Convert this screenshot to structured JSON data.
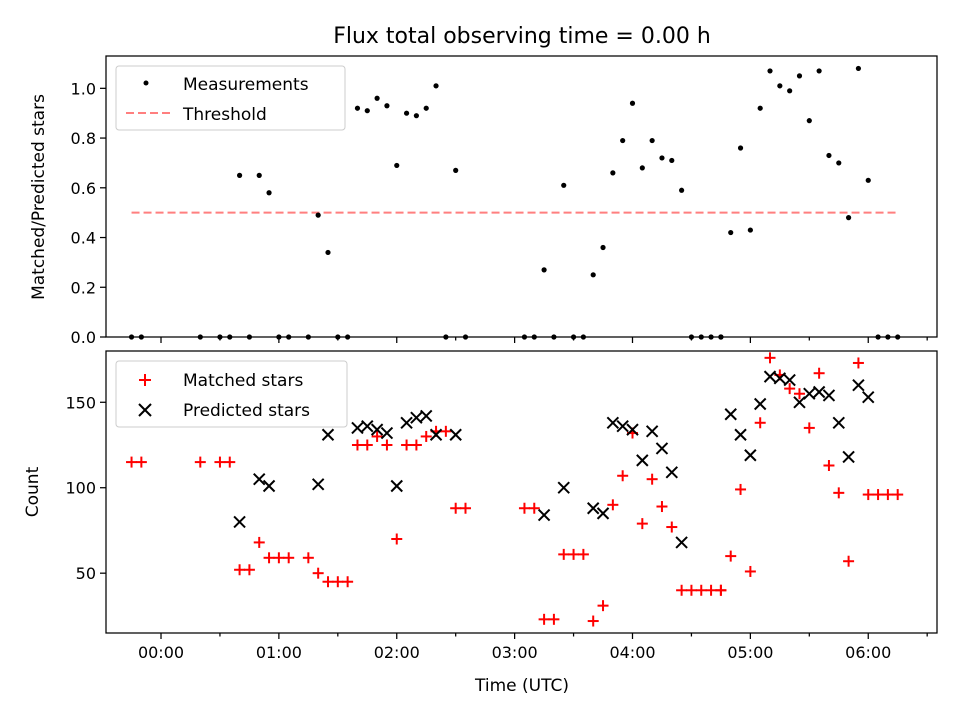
{
  "colors": {
    "measurement": "#000000",
    "threshold": "#ff7f7f",
    "matched": "#ff0000",
    "predicted": "#000000"
  },
  "chart_data": [
    {
      "type": "scatter",
      "title": "Flux total observing time = 0.00 h",
      "xlabel": "",
      "ylabel": "Matched/Predicted stars",
      "x_ticks_shared": true,
      "ylim": [
        0,
        1.13
      ],
      "yticks": [
        "0.0",
        "0.2",
        "0.4",
        "0.6",
        "0.8",
        "1.0"
      ],
      "legend_position": "upper left",
      "series": [
        {
          "name": "Measurements",
          "marker": "dot",
          "points": [
            [
              "23:45",
              0
            ],
            [
              "23:50",
              0
            ],
            [
              "00:20",
              0
            ],
            [
              "00:30",
              0
            ],
            [
              "00:35",
              0
            ],
            [
              "00:40",
              0.65
            ],
            [
              "00:45",
              0
            ],
            [
              "00:50",
              0.65
            ],
            [
              "00:55",
              0.58
            ],
            [
              "01:00",
              0
            ],
            [
              "01:05",
              0
            ],
            [
              "01:15",
              0
            ],
            [
              "01:20",
              0.49
            ],
            [
              "01:25",
              0.34
            ],
            [
              "01:30",
              0
            ],
            [
              "01:35",
              0
            ],
            [
              "01:40",
              0.92
            ],
            [
              "01:45",
              0.91
            ],
            [
              "01:50",
              0.96
            ],
            [
              "01:55",
              0.93
            ],
            [
              "02:00",
              0.69
            ],
            [
              "02:05",
              0.9
            ],
            [
              "02:10",
              0.89
            ],
            [
              "02:15",
              0.92
            ],
            [
              "02:20",
              1.01
            ],
            [
              "02:25",
              0
            ],
            [
              "02:30",
              0.67
            ],
            [
              "02:35",
              0
            ],
            [
              "03:05",
              0
            ],
            [
              "03:10",
              0
            ],
            [
              "03:15",
              0.27
            ],
            [
              "03:20",
              0
            ],
            [
              "03:25",
              0.61
            ],
            [
              "03:30",
              0
            ],
            [
              "03:35",
              0
            ],
            [
              "03:40",
              0.25
            ],
            [
              "03:45",
              0.36
            ],
            [
              "03:50",
              0.66
            ],
            [
              "03:55",
              0.79
            ],
            [
              "04:00",
              0.94
            ],
            [
              "04:05",
              0.68
            ],
            [
              "04:10",
              0.79
            ],
            [
              "04:15",
              0.72
            ],
            [
              "04:20",
              0.71
            ],
            [
              "04:25",
              0.59
            ],
            [
              "04:30",
              0
            ],
            [
              "04:35",
              0
            ],
            [
              "04:40",
              0
            ],
            [
              "04:45",
              0
            ],
            [
              "04:45",
              0
            ],
            [
              "04:50",
              0.42
            ],
            [
              "04:55",
              0.76
            ],
            [
              "05:00",
              0.43
            ],
            [
              "05:05",
              0.92
            ],
            [
              "05:10",
              1.07
            ],
            [
              "05:15",
              1.01
            ],
            [
              "05:20",
              0.99
            ],
            [
              "05:25",
              1.05
            ],
            [
              "05:30",
              0.87
            ],
            [
              "05:35",
              1.07
            ],
            [
              "05:40",
              0.73
            ],
            [
              "05:45",
              0.7
            ],
            [
              "05:50",
              0.48
            ],
            [
              "05:55",
              1.08
            ],
            [
              "06:00",
              0.63
            ],
            [
              "06:05",
              0
            ],
            [
              "06:10",
              0
            ],
            [
              "06:15",
              0
            ]
          ]
        },
        {
          "name": "Threshold",
          "style": "dashed",
          "points": [
            [
              "23:45",
              0.5
            ],
            [
              "06:15",
              0.5
            ]
          ]
        }
      ]
    },
    {
      "type": "scatter",
      "title": "",
      "xlabel": "Time (UTC)",
      "ylabel": "Count",
      "xlim": [
        "23:32",
        "06:35"
      ],
      "xticks": [
        "00:00",
        "01:00",
        "02:00",
        "03:00",
        "04:00",
        "05:00",
        "06:00"
      ],
      "ylim": [
        15,
        180
      ],
      "yticks": [
        "50",
        "100",
        "150"
      ],
      "legend_position": "upper left",
      "series": [
        {
          "name": "Matched stars",
          "marker": "plus",
          "points": [
            [
              "23:45",
              115
            ],
            [
              "23:50",
              115
            ],
            [
              "00:20",
              115
            ],
            [
              "00:30",
              115
            ],
            [
              "00:35",
              115
            ],
            [
              "00:40",
              52
            ],
            [
              "00:45",
              52
            ],
            [
              "00:50",
              68
            ],
            [
              "00:55",
              59
            ],
            [
              "01:00",
              59
            ],
            [
              "01:05",
              59
            ],
            [
              "01:15",
              59
            ],
            [
              "01:20",
              50
            ],
            [
              "01:25",
              45
            ],
            [
              "01:30",
              45
            ],
            [
              "01:35",
              45
            ],
            [
              "01:40",
              125
            ],
            [
              "01:45",
              125
            ],
            [
              "01:50",
              130
            ],
            [
              "01:55",
              125
            ],
            [
              "02:00",
              70
            ],
            [
              "02:05",
              125
            ],
            [
              "02:10",
              125
            ],
            [
              "02:15",
              130
            ],
            [
              "02:20",
              133
            ],
            [
              "02:25",
              133
            ],
            [
              "02:30",
              88
            ],
            [
              "02:35",
              88
            ],
            [
              "03:05",
              88
            ],
            [
              "03:10",
              88
            ],
            [
              "03:15",
              23
            ],
            [
              "03:20",
              23
            ],
            [
              "03:25",
              61
            ],
            [
              "03:30",
              61
            ],
            [
              "03:35",
              61
            ],
            [
              "03:40",
              22
            ],
            [
              "03:45",
              31
            ],
            [
              "03:50",
              90
            ],
            [
              "03:55",
              107
            ],
            [
              "04:00",
              132
            ],
            [
              "04:05",
              79
            ],
            [
              "04:10",
              105
            ],
            [
              "04:15",
              89
            ],
            [
              "04:20",
              77
            ],
            [
              "04:25",
              40
            ],
            [
              "04:30",
              40
            ],
            [
              "04:35",
              40
            ],
            [
              "04:40",
              40
            ],
            [
              "04:45",
              40
            ],
            [
              "04:45",
              40
            ],
            [
              "04:50",
              60
            ],
            [
              "04:55",
              99
            ],
            [
              "05:00",
              51
            ],
            [
              "05:05",
              138
            ],
            [
              "05:10",
              176
            ],
            [
              "05:15",
              166
            ],
            [
              "05:20",
              158
            ],
            [
              "05:25",
              155
            ],
            [
              "05:30",
              135
            ],
            [
              "05:35",
              167
            ],
            [
              "05:40",
              113
            ],
            [
              "05:45",
              97
            ],
            [
              "05:50",
              57
            ],
            [
              "05:55",
              173
            ],
            [
              "06:00",
              96
            ],
            [
              "06:05",
              96
            ],
            [
              "06:10",
              96
            ],
            [
              "06:15",
              96
            ]
          ]
        },
        {
          "name": "Predicted stars",
          "marker": "x",
          "points": [
            [
              "00:40",
              80
            ],
            [
              "00:50",
              105
            ],
            [
              "00:55",
              101
            ],
            [
              "01:20",
              102
            ],
            [
              "01:25",
              131
            ],
            [
              "01:40",
              135
            ],
            [
              "01:45",
              136
            ],
            [
              "01:50",
              134
            ],
            [
              "01:55",
              132
            ],
            [
              "02:00",
              101
            ],
            [
              "02:05",
              138
            ],
            [
              "02:10",
              141
            ],
            [
              "02:15",
              142
            ],
            [
              "02:20",
              131
            ],
            [
              "02:30",
              131
            ],
            [
              "03:15",
              84
            ],
            [
              "03:25",
              100
            ],
            [
              "03:40",
              88
            ],
            [
              "03:45",
              85
            ],
            [
              "03:50",
              138
            ],
            [
              "03:55",
              136
            ],
            [
              "04:00",
              134
            ],
            [
              "04:05",
              116
            ],
            [
              "04:10",
              133
            ],
            [
              "04:15",
              123
            ],
            [
              "04:20",
              109
            ],
            [
              "04:25",
              68
            ],
            [
              "04:50",
              143
            ],
            [
              "04:55",
              131
            ],
            [
              "05:00",
              119
            ],
            [
              "05:05",
              149
            ],
            [
              "05:10",
              165
            ],
            [
              "05:15",
              164
            ],
            [
              "05:20",
              163
            ],
            [
              "05:25",
              150
            ],
            [
              "05:30",
              155
            ],
            [
              "05:35",
              156
            ],
            [
              "05:40",
              154
            ],
            [
              "05:45",
              138
            ],
            [
              "05:50",
              118
            ],
            [
              "05:55",
              160
            ],
            [
              "06:00",
              153
            ]
          ]
        }
      ]
    }
  ]
}
